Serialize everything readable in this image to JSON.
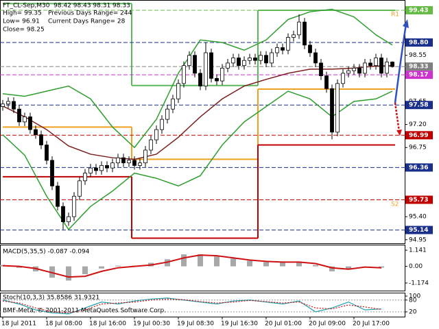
{
  "chart_data": [
    {
      "type": "candlestick",
      "title": "FT_CL-Sep,M30  98.42 98.43 98.31 98.33",
      "info": [
        "High= 99.35",
        "Previous Days Range= 244",
        "Low= 96.91",
        "Current Days Range= 28",
        "Close= 98.25"
      ],
      "annotations": [
        "R1",
        "S2"
      ],
      "categories": [
        "18 Jul 2011",
        null,
        null,
        null,
        null,
        null,
        null,
        null,
        "18 Jul 08:00",
        null,
        null,
        null,
        null,
        null,
        null,
        null,
        "18 Jul 16:00",
        null,
        null,
        null,
        null,
        null,
        null,
        null,
        "19 Jul 00:30",
        null,
        null,
        null,
        null,
        null,
        null,
        null,
        "19 Jul 08:30",
        null,
        null,
        null,
        null,
        null,
        null,
        null,
        "19 Jul 16:30",
        null,
        null,
        null,
        null,
        null,
        null,
        null,
        "20 Jul 01:00",
        null,
        null,
        null,
        null,
        null,
        null,
        null,
        "20 Jul 09:00",
        null,
        null,
        null,
        null,
        null,
        null,
        null,
        "20 Jul 17:00",
        null,
        null,
        null,
        null,
        null,
        null,
        null
      ],
      "open": [
        97.55,
        97.6,
        97.65,
        97.5,
        97.25,
        97.35,
        97.1,
        97.0,
        96.8,
        96.5,
        96.0,
        95.6,
        95.3,
        95.4,
        95.8,
        96.1,
        96.25,
        96.35,
        96.3,
        96.4,
        96.35,
        96.45,
        96.55,
        96.45,
        96.5,
        96.4,
        96.45,
        96.7,
        96.9,
        97.1,
        97.3,
        97.5,
        97.7,
        98.0,
        98.35,
        98.55,
        98.2,
        97.95,
        98.6,
        98.1,
        98.05,
        98.3,
        98.4,
        98.5,
        98.35,
        98.45,
        98.5,
        98.45,
        98.55,
        98.4,
        98.6,
        98.7,
        98.65,
        98.9,
        98.95,
        99.2,
        98.75,
        98.6,
        98.4,
        98.15,
        97.9,
        97.05,
        98.0,
        98.2,
        98.25,
        98.3,
        98.2,
        98.4,
        98.35,
        98.5,
        98.2,
        98.42
      ],
      "high": [
        97.68,
        97.73,
        97.73,
        97.58,
        97.43,
        97.43,
        97.18,
        97.08,
        96.88,
        96.58,
        96.08,
        95.68,
        95.48,
        95.88,
        96.18,
        96.33,
        96.43,
        96.43,
        96.48,
        96.48,
        96.53,
        96.63,
        96.63,
        96.58,
        96.58,
        96.53,
        96.78,
        96.98,
        97.18,
        97.38,
        97.58,
        97.78,
        98.08,
        98.43,
        98.63,
        98.63,
        98.28,
        98.8,
        98.68,
        98.18,
        98.38,
        98.48,
        98.58,
        98.58,
        98.53,
        98.58,
        98.58,
        98.63,
        98.63,
        98.68,
        98.78,
        98.78,
        98.98,
        99.03,
        99.35,
        99.28,
        98.83,
        98.68,
        98.48,
        98.23,
        97.98,
        98.08,
        98.28,
        98.33,
        98.38,
        98.38,
        98.48,
        98.48,
        98.58,
        98.58,
        98.5,
        98.43
      ],
      "low": [
        97.47,
        97.52,
        97.42,
        97.17,
        97.17,
        97.02,
        96.92,
        96.72,
        96.42,
        95.92,
        95.52,
        95.15,
        95.22,
        95.32,
        95.72,
        96.02,
        96.17,
        96.22,
        96.22,
        96.27,
        96.27,
        96.37,
        96.37,
        96.37,
        96.32,
        96.32,
        96.37,
        96.62,
        96.82,
        97.02,
        97.22,
        97.42,
        97.62,
        97.92,
        98.27,
        98.12,
        97.87,
        97.87,
        98.02,
        97.97,
        97.97,
        98.22,
        98.32,
        98.27,
        98.27,
        98.37,
        98.37,
        98.37,
        98.32,
        98.32,
        98.52,
        98.57,
        98.57,
        98.82,
        98.87,
        98.67,
        98.52,
        98.32,
        98.07,
        97.82,
        96.91,
        96.97,
        97.92,
        98.12,
        98.17,
        98.12,
        98.12,
        98.27,
        98.27,
        98.12,
        98.12,
        98.31
      ],
      "close": [
        97.6,
        97.65,
        97.5,
        97.25,
        97.35,
        97.1,
        97.0,
        96.8,
        96.5,
        96.0,
        95.6,
        95.3,
        95.4,
        95.8,
        96.1,
        96.25,
        96.35,
        96.3,
        96.4,
        96.35,
        96.45,
        96.55,
        96.45,
        96.5,
        96.4,
        96.45,
        96.7,
        96.9,
        97.1,
        97.3,
        97.5,
        97.7,
        98.0,
        98.35,
        98.55,
        98.2,
        97.95,
        98.6,
        98.1,
        98.05,
        98.3,
        98.4,
        98.5,
        98.35,
        98.45,
        98.5,
        98.45,
        98.55,
        98.4,
        98.6,
        98.7,
        98.65,
        98.9,
        98.95,
        99.2,
        98.75,
        98.6,
        98.4,
        98.15,
        97.9,
        97.05,
        98.0,
        98.2,
        98.25,
        98.3,
        98.2,
        98.4,
        98.35,
        98.5,
        98.2,
        98.42,
        98.33
      ],
      "color_up": "#ffffff",
      "color_down": "#000000",
      "overlays": [
        {
          "color": "#7b1f1f",
          "x": [
            0,
            4,
            8,
            12,
            16,
            20,
            24,
            28,
            32,
            36,
            40,
            44,
            48,
            52,
            56,
            60,
            64,
            68,
            71
          ],
          "values": [
            97.56,
            97.35,
            97.1,
            96.78,
            96.62,
            96.55,
            96.52,
            96.62,
            96.95,
            97.35,
            97.7,
            97.95,
            98.08,
            98.2,
            98.28,
            98.28,
            98.3,
            98.34,
            98.35
          ]
        },
        {
          "color": "#2e9e2e",
          "x": [
            0,
            4,
            8,
            12,
            16,
            20,
            24,
            28,
            32,
            36,
            40,
            44,
            48,
            52,
            56,
            60,
            64,
            68,
            71
          ],
          "values": [
            97.8,
            97.75,
            97.85,
            97.95,
            97.7,
            97.15,
            96.75,
            97.3,
            98.2,
            98.85,
            98.8,
            98.65,
            98.85,
            99.25,
            99.4,
            99.45,
            99.3,
            98.95,
            98.75
          ]
        },
        {
          "color": "#2e9e2e",
          "x": [
            0,
            4,
            8,
            12,
            16,
            20,
            24,
            28,
            32,
            36,
            40,
            44,
            48,
            52,
            56,
            60,
            64,
            68,
            71
          ],
          "values": [
            97.0,
            96.6,
            95.8,
            95.15,
            95.6,
            95.9,
            96.25,
            96.15,
            96.0,
            96.2,
            96.8,
            97.25,
            97.55,
            97.85,
            97.7,
            97.35,
            97.65,
            97.7,
            97.85
          ]
        }
      ],
      "pivots": [
        {
          "color": "#5cb85c",
          "bins": [
            0,
            23.5,
            46.5,
            71.5
          ],
          "values": [
            99.56,
            97.96,
            99.43
          ]
        },
        {
          "color": "#f0a020",
          "bins": [
            0,
            23.5,
            46.5,
            71.5
          ],
          "values": [
            97.15,
            96.52,
            97.89
          ]
        },
        {
          "color": "#c00000",
          "bins": [
            0,
            23.5,
            46.5,
            71.5
          ],
          "values": [
            96.18,
            94.98,
            96.8
          ]
        }
      ],
      "levels": [
        {
          "value": 99.43,
          "color": "#66bb44"
        },
        {
          "value": 98.8,
          "label": "98.80",
          "color": "#1a2f8c"
        },
        {
          "value": 98.33,
          "color": "#808080"
        },
        {
          "value": 98.17,
          "color": "#cc33cc"
        },
        {
          "value": 97.58,
          "color": "#1a2f8c"
        },
        {
          "value": 96.99,
          "color": "#c00000"
        },
        {
          "value": 96.36,
          "color": "#1a2f8c"
        },
        {
          "value": 95.73,
          "color": "#c00000"
        },
        {
          "value": 95.14,
          "color": "#1a2f8c"
        }
      ],
      "ylim": [
        94.88,
        99.63
      ],
      "yticks": [
        94.95,
        {
          "value": 95.4,
          "label": "95.40"
        },
        96.75,
        {
          "value": 97.2,
          "label": "97.20"
        },
        97.65,
        98.55
      ]
    },
    {
      "type": "macd",
      "title": "MACD(5,35,5) -0.087 -0.094",
      "x": [
        0,
        3,
        6,
        9,
        12,
        15,
        18,
        21,
        24,
        27,
        30,
        33,
        36,
        39,
        42,
        45,
        48,
        51,
        54,
        57,
        60,
        63,
        66,
        69
      ],
      "series": [
        {
          "kind": "bar",
          "color": "#a8a8a8",
          "values": [
            0.1,
            -0.1,
            -0.35,
            -0.8,
            -1.0,
            -0.55,
            -0.15,
            0.05,
            0.05,
            0.25,
            0.5,
            0.85,
            0.85,
            0.7,
            0.55,
            0.4,
            0.3,
            0.3,
            0.35,
            0.1,
            -0.35,
            -0.2,
            0.0,
            -0.09
          ]
        },
        {
          "kind": "line",
          "color": "#d01010",
          "values": [
            0.05,
            0.0,
            -0.15,
            -0.45,
            -0.75,
            -0.7,
            -0.35,
            -0.1,
            0.0,
            0.1,
            0.3,
            0.6,
            0.8,
            0.75,
            0.6,
            0.45,
            0.35,
            0.3,
            0.3,
            0.2,
            -0.1,
            -0.2,
            -0.05,
            -0.1
          ]
        }
      ],
      "ylim": [
        -1.71,
        1.53
      ],
      "yticks": [
        -1.174,
        {
          "value": 0,
          "label": "0.00"
        },
        1.141
      ]
    },
    {
      "type": "stochastic",
      "title": "Stoch(10,3,3) 35.8586 31.9321",
      "x": [
        0,
        3,
        6,
        9,
        12,
        15,
        18,
        21,
        24,
        27,
        30,
        33,
        36,
        39,
        42,
        45,
        48,
        51,
        54,
        57,
        60,
        63,
        66,
        69
      ],
      "series": [
        {
          "kind": "line",
          "color": "#20a0b0",
          "values": [
            80,
            60,
            30,
            15,
            10,
            40,
            70,
            60,
            75,
            85,
            90,
            80,
            70,
            60,
            75,
            80,
            70,
            60,
            75,
            20,
            40,
            70,
            30,
            35
          ]
        },
        {
          "kind": "dotted",
          "color": "#d01010",
          "values": [
            75,
            65,
            40,
            20,
            15,
            30,
            60,
            65,
            70,
            80,
            85,
            82,
            72,
            65,
            70,
            78,
            72,
            65,
            70,
            40,
            35,
            55,
            45,
            32
          ]
        }
      ],
      "levels": [
        20,
        80
      ],
      "ylim": [
        -4.3,
        117.4
      ],
      "yticks": [
        20,
        80,
        100
      ]
    }
  ],
  "copyright": "BMF-Meta, © 2001-2011 MetaQuotes Software Corp."
}
